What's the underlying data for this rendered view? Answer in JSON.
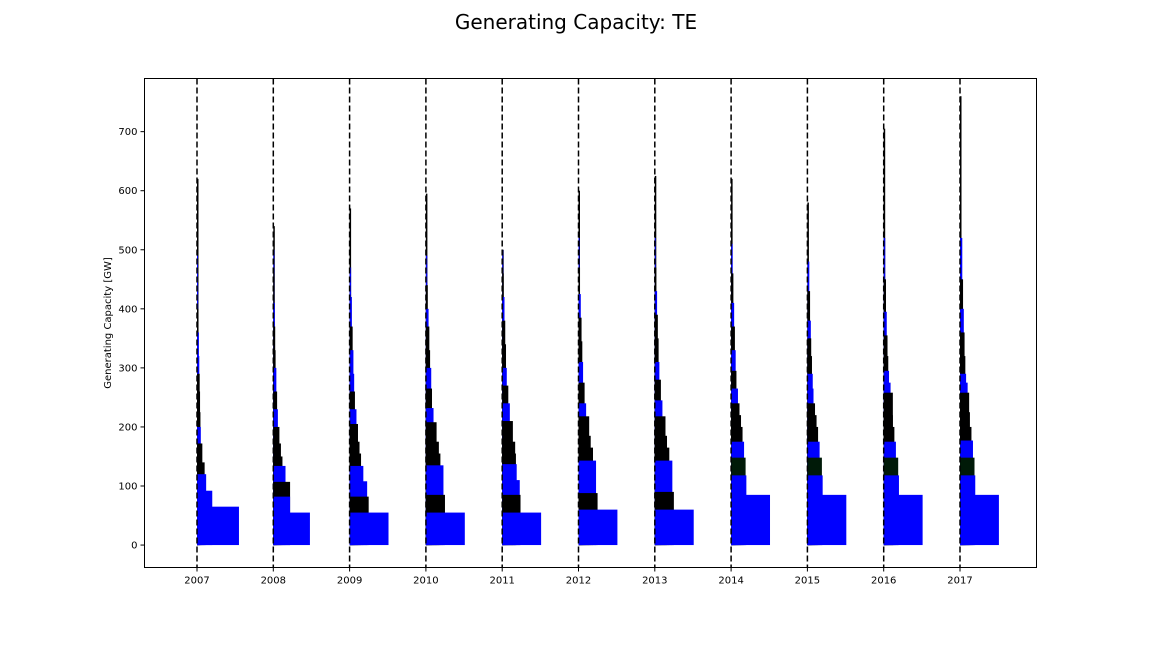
{
  "chart_data": {
    "type": "bar",
    "title": "Generating Capacity: TE",
    "xlabel": "",
    "ylabel": "Generating Capacity [GW]",
    "ylim": [
      -38,
      790
    ],
    "yticks": [
      0,
      100,
      200,
      300,
      400,
      500,
      600,
      700
    ],
    "xticks": [
      "2007",
      "2008",
      "2009",
      "2010",
      "2011",
      "2012",
      "2013",
      "2014",
      "2015",
      "2016",
      "2017"
    ],
    "grid": false,
    "legend": "none",
    "colors": {
      "blue": "#0000ff",
      "black": "#000000",
      "dark_green": "#001a08"
    },
    "series": [
      {
        "year": "2007",
        "peak": 620,
        "steps": [
          {
            "value": 65,
            "width": 0.55,
            "color": "blue"
          },
          {
            "value": 92,
            "width": 0.2,
            "color": "blue"
          },
          {
            "value": 120,
            "width": 0.12,
            "color": "blue"
          },
          {
            "value": 140,
            "width": 0.1,
            "color": "black"
          },
          {
            "value": 172,
            "width": 0.07,
            "color": "black"
          },
          {
            "value": 200,
            "width": 0.05,
            "color": "blue"
          },
          {
            "value": 225,
            "width": 0.045,
            "color": "black"
          },
          {
            "value": 260,
            "width": 0.04,
            "color": "black"
          },
          {
            "value": 290,
            "width": 0.035,
            "color": "black"
          },
          {
            "value": 320,
            "width": 0.03,
            "color": "blue"
          },
          {
            "value": 360,
            "width": 0.025,
            "color": "blue"
          },
          {
            "value": 400,
            "width": 0.02,
            "color": "black"
          },
          {
            "value": 440,
            "width": 0.015,
            "color": "blue"
          },
          {
            "value": 490,
            "width": 0.01,
            "color": "blue"
          },
          {
            "value": 550,
            "width": 0.008,
            "color": "black"
          }
        ]
      },
      {
        "year": "2008",
        "peak": 540,
        "steps": [
          {
            "value": 55,
            "width": 0.48,
            "color": "blue"
          },
          {
            "value": 82,
            "width": 0.22,
            "color": "blue"
          },
          {
            "value": 107,
            "width": 0.22,
            "color": "black"
          },
          {
            "value": 134,
            "width": 0.16,
            "color": "blue"
          },
          {
            "value": 150,
            "width": 0.12,
            "color": "black"
          },
          {
            "value": 172,
            "width": 0.1,
            "color": "black"
          },
          {
            "value": 200,
            "width": 0.08,
            "color": "black"
          },
          {
            "value": 230,
            "width": 0.06,
            "color": "blue"
          },
          {
            "value": 260,
            "width": 0.05,
            "color": "black"
          },
          {
            "value": 300,
            "width": 0.04,
            "color": "blue"
          },
          {
            "value": 330,
            "width": 0.03,
            "color": "black"
          },
          {
            "value": 370,
            "width": 0.025,
            "color": "black"
          },
          {
            "value": 410,
            "width": 0.02,
            "color": "blue"
          },
          {
            "value": 460,
            "width": 0.012,
            "color": "black"
          },
          {
            "value": 500,
            "width": 0.008,
            "color": "blue"
          }
        ]
      },
      {
        "year": "2009",
        "peak": 570,
        "steps": [
          {
            "value": 55,
            "width": 0.51,
            "color": "blue"
          },
          {
            "value": 82,
            "width": 0.25,
            "color": "black"
          },
          {
            "value": 108,
            "width": 0.23,
            "color": "blue"
          },
          {
            "value": 134,
            "width": 0.18,
            "color": "blue"
          },
          {
            "value": 155,
            "width": 0.15,
            "color": "black"
          },
          {
            "value": 175,
            "width": 0.13,
            "color": "black"
          },
          {
            "value": 205,
            "width": 0.11,
            "color": "black"
          },
          {
            "value": 230,
            "width": 0.09,
            "color": "blue"
          },
          {
            "value": 260,
            "width": 0.07,
            "color": "black"
          },
          {
            "value": 290,
            "width": 0.06,
            "color": "blue"
          },
          {
            "value": 330,
            "width": 0.05,
            "color": "blue"
          },
          {
            "value": 370,
            "width": 0.04,
            "color": "black"
          },
          {
            "value": 420,
            "width": 0.03,
            "color": "blue"
          },
          {
            "value": 470,
            "width": 0.02,
            "color": "blue"
          },
          {
            "value": 520,
            "width": 0.01,
            "color": "black"
          }
        ]
      },
      {
        "year": "2010",
        "peak": 595,
        "steps": [
          {
            "value": 55,
            "width": 0.51,
            "color": "blue"
          },
          {
            "value": 85,
            "width": 0.25,
            "color": "black"
          },
          {
            "value": 135,
            "width": 0.23,
            "color": "blue"
          },
          {
            "value": 155,
            "width": 0.19,
            "color": "black"
          },
          {
            "value": 175,
            "width": 0.17,
            "color": "black"
          },
          {
            "value": 208,
            "width": 0.14,
            "color": "black"
          },
          {
            "value": 232,
            "width": 0.1,
            "color": "blue"
          },
          {
            "value": 265,
            "width": 0.08,
            "color": "black"
          },
          {
            "value": 300,
            "width": 0.07,
            "color": "blue"
          },
          {
            "value": 330,
            "width": 0.055,
            "color": "black"
          },
          {
            "value": 370,
            "width": 0.045,
            "color": "black"
          },
          {
            "value": 400,
            "width": 0.035,
            "color": "blue"
          },
          {
            "value": 440,
            "width": 0.025,
            "color": "black"
          },
          {
            "value": 490,
            "width": 0.018,
            "color": "blue"
          },
          {
            "value": 540,
            "width": 0.01,
            "color": "black"
          }
        ]
      },
      {
        "year": "2011",
        "peak": 500,
        "steps": [
          {
            "value": 55,
            "width": 0.51,
            "color": "blue"
          },
          {
            "value": 85,
            "width": 0.24,
            "color": "black"
          },
          {
            "value": 110,
            "width": 0.23,
            "color": "blue"
          },
          {
            "value": 137,
            "width": 0.19,
            "color": "blue"
          },
          {
            "value": 155,
            "width": 0.18,
            "color": "black"
          },
          {
            "value": 175,
            "width": 0.17,
            "color": "black"
          },
          {
            "value": 210,
            "width": 0.14,
            "color": "black"
          },
          {
            "value": 240,
            "width": 0.1,
            "color": "blue"
          },
          {
            "value": 270,
            "width": 0.08,
            "color": "black"
          },
          {
            "value": 300,
            "width": 0.06,
            "color": "blue"
          },
          {
            "value": 340,
            "width": 0.05,
            "color": "black"
          },
          {
            "value": 380,
            "width": 0.04,
            "color": "black"
          },
          {
            "value": 420,
            "width": 0.03,
            "color": "blue"
          },
          {
            "value": 460,
            "width": 0.02,
            "color": "black"
          },
          {
            "value": 500,
            "width": 0.01,
            "color": "blue"
          }
        ]
      },
      {
        "year": "2012",
        "peak": 600,
        "steps": [
          {
            "value": 60,
            "width": 0.51,
            "color": "blue"
          },
          {
            "value": 88,
            "width": 0.25,
            "color": "black"
          },
          {
            "value": 143,
            "width": 0.23,
            "color": "blue"
          },
          {
            "value": 165,
            "width": 0.19,
            "color": "black"
          },
          {
            "value": 185,
            "width": 0.16,
            "color": "black"
          },
          {
            "value": 218,
            "width": 0.14,
            "color": "black"
          },
          {
            "value": 240,
            "width": 0.1,
            "color": "blue"
          },
          {
            "value": 275,
            "width": 0.08,
            "color": "black"
          },
          {
            "value": 310,
            "width": 0.06,
            "color": "blue"
          },
          {
            "value": 345,
            "width": 0.05,
            "color": "black"
          },
          {
            "value": 385,
            "width": 0.04,
            "color": "black"
          },
          {
            "value": 425,
            "width": 0.03,
            "color": "blue"
          },
          {
            "value": 470,
            "width": 0.02,
            "color": "black"
          },
          {
            "value": 520,
            "width": 0.012,
            "color": "blue"
          },
          {
            "value": 560,
            "width": 0.006,
            "color": "black"
          }
        ]
      },
      {
        "year": "2013",
        "peak": 625,
        "steps": [
          {
            "value": 60,
            "width": 0.51,
            "color": "blue"
          },
          {
            "value": 90,
            "width": 0.25,
            "color": "black"
          },
          {
            "value": 143,
            "width": 0.23,
            "color": "blue"
          },
          {
            "value": 165,
            "width": 0.19,
            "color": "black"
          },
          {
            "value": 185,
            "width": 0.16,
            "color": "black"
          },
          {
            "value": 218,
            "width": 0.14,
            "color": "black"
          },
          {
            "value": 245,
            "width": 0.1,
            "color": "blue"
          },
          {
            "value": 280,
            "width": 0.08,
            "color": "black"
          },
          {
            "value": 310,
            "width": 0.06,
            "color": "blue"
          },
          {
            "value": 350,
            "width": 0.05,
            "color": "black"
          },
          {
            "value": 390,
            "width": 0.04,
            "color": "black"
          },
          {
            "value": 430,
            "width": 0.03,
            "color": "blue"
          },
          {
            "value": 470,
            "width": 0.02,
            "color": "black"
          },
          {
            "value": 520,
            "width": 0.012,
            "color": "blue"
          },
          {
            "value": 570,
            "width": 0.006,
            "color": "black"
          }
        ]
      },
      {
        "year": "2014",
        "peak": 620,
        "steps": [
          {
            "value": 85,
            "width": 0.51,
            "color": "blue"
          },
          {
            "value": 118,
            "width": 0.2,
            "color": "blue"
          },
          {
            "value": 148,
            "width": 0.19,
            "color": "dark_green"
          },
          {
            "value": 175,
            "width": 0.17,
            "color": "blue"
          },
          {
            "value": 200,
            "width": 0.15,
            "color": "black"
          },
          {
            "value": 220,
            "width": 0.13,
            "color": "black"
          },
          {
            "value": 240,
            "width": 0.11,
            "color": "black"
          },
          {
            "value": 265,
            "width": 0.09,
            "color": "blue"
          },
          {
            "value": 295,
            "width": 0.07,
            "color": "black"
          },
          {
            "value": 330,
            "width": 0.06,
            "color": "blue"
          },
          {
            "value": 370,
            "width": 0.05,
            "color": "black"
          },
          {
            "value": 410,
            "width": 0.04,
            "color": "blue"
          },
          {
            "value": 460,
            "width": 0.03,
            "color": "black"
          },
          {
            "value": 510,
            "width": 0.02,
            "color": "blue"
          },
          {
            "value": 560,
            "width": 0.01,
            "color": "black"
          }
        ]
      },
      {
        "year": "2015",
        "peak": 580,
        "steps": [
          {
            "value": 85,
            "width": 0.51,
            "color": "blue"
          },
          {
            "value": 118,
            "width": 0.2,
            "color": "blue"
          },
          {
            "value": 148,
            "width": 0.19,
            "color": "dark_green"
          },
          {
            "value": 175,
            "width": 0.16,
            "color": "blue"
          },
          {
            "value": 200,
            "width": 0.14,
            "color": "black"
          },
          {
            "value": 220,
            "width": 0.12,
            "color": "black"
          },
          {
            "value": 240,
            "width": 0.1,
            "color": "black"
          },
          {
            "value": 265,
            "width": 0.08,
            "color": "blue"
          },
          {
            "value": 290,
            "width": 0.07,
            "color": "blue"
          },
          {
            "value": 320,
            "width": 0.06,
            "color": "black"
          },
          {
            "value": 350,
            "width": 0.05,
            "color": "black"
          },
          {
            "value": 380,
            "width": 0.045,
            "color": "blue"
          },
          {
            "value": 430,
            "width": 0.035,
            "color": "black"
          },
          {
            "value": 480,
            "width": 0.025,
            "color": "blue"
          },
          {
            "value": 530,
            "width": 0.015,
            "color": "black"
          }
        ]
      },
      {
        "year": "2016",
        "peak": 705,
        "steps": [
          {
            "value": 85,
            "width": 0.51,
            "color": "blue"
          },
          {
            "value": 118,
            "width": 0.2,
            "color": "blue"
          },
          {
            "value": 148,
            "width": 0.19,
            "color": "dark_green"
          },
          {
            "value": 175,
            "width": 0.16,
            "color": "blue"
          },
          {
            "value": 200,
            "width": 0.14,
            "color": "black"
          },
          {
            "value": 220,
            "width": 0.12,
            "color": "black"
          },
          {
            "value": 258,
            "width": 0.12,
            "color": "black"
          },
          {
            "value": 275,
            "width": 0.09,
            "color": "blue"
          },
          {
            "value": 295,
            "width": 0.07,
            "color": "blue"
          },
          {
            "value": 320,
            "width": 0.06,
            "color": "black"
          },
          {
            "value": 355,
            "width": 0.05,
            "color": "black"
          },
          {
            "value": 395,
            "width": 0.04,
            "color": "blue"
          },
          {
            "value": 450,
            "width": 0.03,
            "color": "black"
          },
          {
            "value": 520,
            "width": 0.02,
            "color": "blue"
          },
          {
            "value": 590,
            "width": 0.01,
            "color": "black"
          }
        ]
      },
      {
        "year": "2017",
        "peak": 760,
        "steps": [
          {
            "value": 85,
            "width": 0.51,
            "color": "blue"
          },
          {
            "value": 118,
            "width": 0.2,
            "color": "blue"
          },
          {
            "value": 148,
            "width": 0.19,
            "color": "dark_green"
          },
          {
            "value": 177,
            "width": 0.17,
            "color": "blue"
          },
          {
            "value": 200,
            "width": 0.15,
            "color": "black"
          },
          {
            "value": 225,
            "width": 0.13,
            "color": "black"
          },
          {
            "value": 258,
            "width": 0.12,
            "color": "black"
          },
          {
            "value": 275,
            "width": 0.1,
            "color": "blue"
          },
          {
            "value": 290,
            "width": 0.08,
            "color": "blue"
          },
          {
            "value": 320,
            "width": 0.07,
            "color": "black"
          },
          {
            "value": 360,
            "width": 0.06,
            "color": "black"
          },
          {
            "value": 400,
            "width": 0.05,
            "color": "blue"
          },
          {
            "value": 450,
            "width": 0.04,
            "color": "black"
          },
          {
            "value": 520,
            "width": 0.03,
            "color": "blue"
          },
          {
            "value": 600,
            "width": 0.015,
            "color": "black"
          }
        ]
      }
    ]
  }
}
